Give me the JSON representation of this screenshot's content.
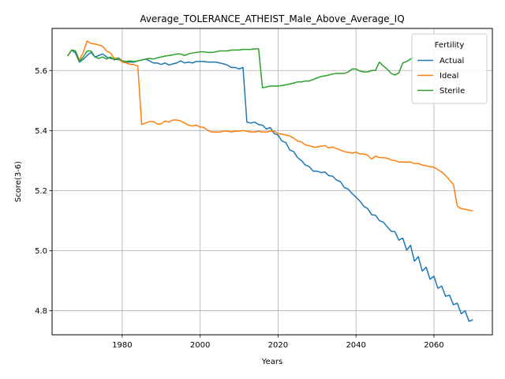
{
  "chart_data": {
    "type": "line",
    "title": "Average_TOLERANCE_ATHEIST_Male_Above_Average_IQ",
    "xlabel": "Years",
    "ylabel": "Score(3-6)",
    "xlim": [
      1962,
      2075
    ],
    "ylim": [
      4.72,
      5.74
    ],
    "x_ticks": [
      1980,
      2000,
      2020,
      2040,
      2060
    ],
    "x_tick_labels": [
      "1980",
      "2000",
      "2020",
      "2040",
      "2060"
    ],
    "y_ticks": [
      4.8,
      5.0,
      5.2,
      5.4,
      5.6
    ],
    "y_tick_labels": [
      "4.8",
      "5.0",
      "5.2",
      "5.4",
      "5.6"
    ],
    "grid": true,
    "legend": {
      "title": "Fertility",
      "placement": "top-right"
    },
    "x": [
      1966,
      1967,
      1968,
      1969,
      1970,
      1971,
      1972,
      1973,
      1974,
      1975,
      1976,
      1977,
      1978,
      1979,
      1980,
      1981,
      1982,
      1983,
      1984,
      1985,
      1986,
      1987,
      1988,
      1989,
      1990,
      1991,
      1992,
      1993,
      1994,
      1995,
      1996,
      1997,
      1998,
      1999,
      2000,
      2001,
      2002,
      2003,
      2004,
      2005,
      2006,
      2007,
      2008,
      2009,
      2010,
      2011,
      2012,
      2013,
      2014,
      2015,
      2016,
      2017,
      2018,
      2019,
      2020,
      2021,
      2022,
      2023,
      2024,
      2025,
      2026,
      2027,
      2028,
      2029,
      2030,
      2031,
      2032,
      2033,
      2034,
      2035,
      2036,
      2037,
      2038,
      2039,
      2040,
      2041,
      2042,
      2043,
      2044,
      2045,
      2046,
      2047,
      2048,
      2049,
      2050,
      2051,
      2052,
      2053,
      2054,
      2055,
      2056,
      2057,
      2058,
      2059,
      2060,
      2061,
      2062,
      2063,
      2064,
      2065,
      2066,
      2067,
      2068,
      2069,
      2070
    ],
    "series": [
      {
        "name": "Actual",
        "color": "#1f77b4",
        "values": [
          5.648,
          5.668,
          5.658,
          5.628,
          5.637,
          5.65,
          5.66,
          5.645,
          5.65,
          5.655,
          5.645,
          5.64,
          5.638,
          5.636,
          5.632,
          5.628,
          5.628,
          5.628,
          5.632,
          5.635,
          5.638,
          5.632,
          5.625,
          5.625,
          5.62,
          5.625,
          5.618,
          5.622,
          5.625,
          5.632,
          5.625,
          5.628,
          5.625,
          5.63,
          5.63,
          5.63,
          5.628,
          5.628,
          5.628,
          5.625,
          5.622,
          5.618,
          5.61,
          5.61,
          5.605,
          5.61,
          5.428,
          5.425,
          5.428,
          5.42,
          5.418,
          5.405,
          5.41,
          5.39,
          5.385,
          5.365,
          5.36,
          5.335,
          5.33,
          5.31,
          5.3,
          5.285,
          5.28,
          5.265,
          5.265,
          5.26,
          5.262,
          5.25,
          5.248,
          5.235,
          5.23,
          5.21,
          5.205,
          5.19,
          5.178,
          5.165,
          5.148,
          5.14,
          5.12,
          5.118,
          5.1,
          5.095,
          5.08,
          5.065,
          5.063,
          5.035,
          5.042,
          5.002,
          5.018,
          4.965,
          4.98,
          4.932,
          4.945,
          4.905,
          4.915,
          4.875,
          4.882,
          4.848,
          4.852,
          4.82,
          4.825,
          4.79,
          4.8,
          4.765,
          4.77
        ]
      },
      {
        "name": "Ideal",
        "color": "#ff7f0e",
        "values": [
          5.648,
          5.668,
          5.665,
          5.635,
          5.66,
          5.698,
          5.69,
          5.688,
          5.685,
          5.68,
          5.665,
          5.658,
          5.64,
          5.64,
          5.628,
          5.625,
          5.62,
          5.62,
          5.615,
          5.42,
          5.425,
          5.43,
          5.43,
          5.422,
          5.422,
          5.432,
          5.428,
          5.435,
          5.435,
          5.432,
          5.425,
          5.418,
          5.415,
          5.418,
          5.412,
          5.41,
          5.4,
          5.395,
          5.395,
          5.395,
          5.398,
          5.398,
          5.395,
          5.398,
          5.398,
          5.4,
          5.398,
          5.395,
          5.395,
          5.398,
          5.395,
          5.395,
          5.398,
          5.398,
          5.39,
          5.388,
          5.385,
          5.382,
          5.375,
          5.365,
          5.362,
          5.352,
          5.35,
          5.345,
          5.345,
          5.348,
          5.35,
          5.342,
          5.345,
          5.34,
          5.335,
          5.33,
          5.328,
          5.325,
          5.328,
          5.322,
          5.322,
          5.318,
          5.305,
          5.315,
          5.31,
          5.31,
          5.308,
          5.302,
          5.3,
          5.295,
          5.295,
          5.295,
          5.295,
          5.29,
          5.29,
          5.285,
          5.283,
          5.28,
          5.278,
          5.27,
          5.262,
          5.25,
          5.235,
          5.22,
          5.148,
          5.14,
          5.138,
          5.135,
          5.132
        ]
      },
      {
        "name": "Sterile",
        "color": "#2ca02c",
        "values": [
          5.648,
          5.668,
          5.665,
          5.63,
          5.645,
          5.665,
          5.665,
          5.645,
          5.64,
          5.645,
          5.638,
          5.645,
          5.635,
          5.642,
          5.632,
          5.63,
          5.632,
          5.63,
          5.632,
          5.635,
          5.638,
          5.64,
          5.638,
          5.642,
          5.645,
          5.648,
          5.65,
          5.652,
          5.655,
          5.655,
          5.65,
          5.655,
          5.658,
          5.66,
          5.662,
          5.662,
          5.66,
          5.66,
          5.662,
          5.665,
          5.665,
          5.665,
          5.668,
          5.668,
          5.668,
          5.67,
          5.67,
          5.67,
          5.672,
          5.672,
          5.542,
          5.545,
          5.548,
          5.548,
          5.548,
          5.55,
          5.552,
          5.555,
          5.558,
          5.562,
          5.562,
          5.565,
          5.565,
          5.57,
          5.575,
          5.58,
          5.582,
          5.585,
          5.588,
          5.59,
          5.59,
          5.59,
          5.595,
          5.605,
          5.605,
          5.598,
          5.595,
          5.595,
          5.6,
          5.6,
          5.628,
          5.615,
          5.605,
          5.59,
          5.585,
          5.592,
          5.625,
          5.63,
          5.638,
          5.645,
          null,
          null,
          null,
          null,
          null,
          null,
          null,
          null,
          null,
          null,
          null,
          null,
          null,
          null,
          null
        ]
      }
    ]
  }
}
